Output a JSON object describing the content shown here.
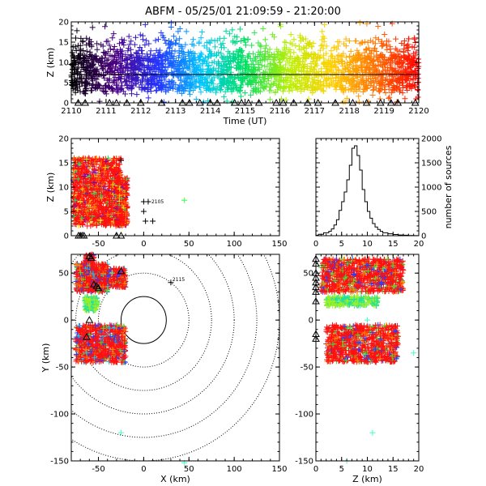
{
  "title": "ABFM - 05/25/01 21:09:59 - 21:20:00",
  "colors": {
    "background": "#ffffff",
    "axes": "#000000",
    "time_scale": [
      "#000000",
      "#4b0082",
      "#2233ff",
      "#00c8ff",
      "#00e060",
      "#b8f000",
      "#ffd000",
      "#ff7000",
      "#ff0000"
    ]
  },
  "chart_data": [
    {
      "id": "time_height",
      "type": "scatter",
      "xlabel": "Time (UT)",
      "ylabel": "Z (km)",
      "xlim": [
        2110,
        2120
      ],
      "ylim": [
        0,
        20
      ],
      "xticks": [
        "2110",
        "2111",
        "2112",
        "2113",
        "2114",
        "2115",
        "2116",
        "2117",
        "2118",
        "2119",
        "2120"
      ],
      "yticks": [
        "0",
        "5",
        "10",
        "15",
        "20"
      ],
      "marker": "+",
      "color_by": "time",
      "reference_line_z": 7,
      "station_marker": "triangle",
      "station_times": [
        2110.2,
        2110.4,
        2111.1,
        2111.3,
        2111.6,
        2112.0,
        2112.6,
        2113.2,
        2113.4,
        2113.7,
        2114.0,
        2114.2,
        2114.7,
        2114.9,
        2115.1,
        2115.4,
        2115.9,
        2116.1,
        2116.4,
        2116.8,
        2117.1,
        2117.6,
        2118.1,
        2118.5,
        2118.9,
        2119.2,
        2119.4,
        2119.9
      ],
      "density": {
        "note": "sources spread across full time range, concentrated at 3-12 km",
        "z_range_core": [
          3,
          12
        ],
        "z_range_outliers": [
          0,
          20
        ]
      }
    },
    {
      "id": "x_height",
      "type": "scatter",
      "xlabel": "",
      "ylabel": "Z (km)",
      "xlim": [
        -80,
        150
      ],
      "ylim": [
        0,
        20
      ],
      "xticks": [
        "-50",
        "0",
        "50",
        "100",
        "150"
      ],
      "yticks": [
        "0",
        "5",
        "10",
        "15",
        "20"
      ],
      "clusters": [
        {
          "x_range": [
            -78,
            -25
          ],
          "z_range": [
            2,
            16
          ]
        },
        {
          "x_range": [
            -30,
            -18
          ],
          "z_range": [
            2,
            12
          ]
        }
      ],
      "labeled_point": {
        "x": 5,
        "z": 7,
        "label": "2105"
      },
      "outliers": [
        {
          "x": 45,
          "z": 7.3
        },
        {
          "x": 0,
          "z": 5
        },
        {
          "x": 2,
          "z": 3
        },
        {
          "x": 10,
          "z": 3
        },
        {
          "x": -25,
          "z": 15.5
        },
        {
          "x": 0,
          "z": 7
        }
      ]
    },
    {
      "id": "height_histogram",
      "type": "line",
      "xlabel": "",
      "ylabel": "number of sources",
      "ylabel_side": "right",
      "xlim": [
        0,
        20
      ],
      "ylim": [
        0,
        2000
      ],
      "xticks": [
        "0",
        "5",
        "10",
        "15",
        "20"
      ],
      "yticks": [
        "0",
        "500",
        "1000",
        "1500",
        "2000"
      ],
      "x": [
        0.5,
        1.5,
        2.5,
        3.0,
        3.5,
        4.0,
        4.5,
        5.0,
        5.5,
        6.0,
        6.5,
        7.0,
        7.5,
        8.0,
        8.5,
        9.0,
        9.5,
        10.0,
        10.5,
        11.0,
        11.5,
        12.0,
        12.5,
        13.0,
        14.0,
        15.0,
        16.0,
        17.0,
        18.0,
        19.0,
        20.0
      ],
      "values": [
        10,
        30,
        60,
        90,
        140,
        220,
        330,
        520,
        700,
        900,
        1150,
        1450,
        1800,
        1850,
        1650,
        1350,
        950,
        700,
        500,
        360,
        250,
        180,
        130,
        90,
        60,
        40,
        25,
        15,
        10,
        5,
        3
      ]
    },
    {
      "id": "plan_view",
      "type": "scatter",
      "xlabel": "X (km)",
      "ylabel": "Y (km)",
      "xlim": [
        -80,
        150
      ],
      "ylim": [
        -150,
        70
      ],
      "xticks": [
        "-50",
        "0",
        "50",
        "100",
        "150"
      ],
      "yticks": [
        "-150",
        "-100",
        "-50",
        "0",
        "50"
      ],
      "range_rings_km": [
        25,
        50,
        75,
        100,
        125,
        150
      ],
      "clusters": [
        {
          "x_range": [
            -75,
            -40
          ],
          "y_range": [
            30,
            60
          ]
        },
        {
          "x_range": [
            -45,
            -20
          ],
          "y_range": [
            35,
            55
          ]
        },
        {
          "x_range": [
            -75,
            -20
          ],
          "y_range": [
            -45,
            -5
          ]
        },
        {
          "x_range": [
            -65,
            -50
          ],
          "y_range": [
            10,
            25
          ]
        },
        {
          "x_range": [
            -65,
            -55
          ],
          "y_range": [
            60,
            70
          ]
        }
      ],
      "labeled_point": {
        "x": 30,
        "y": 40,
        "label": "2115"
      },
      "outliers": [
        {
          "x": -25,
          "y": -120
        },
        {
          "x": 45,
          "y": -152
        },
        {
          "x": -35,
          "y": 50
        }
      ]
    },
    {
      "id": "height_y",
      "type": "scatter",
      "xlabel": "Z (km)",
      "ylabel": "",
      "xlim": [
        0,
        20
      ],
      "ylim": [
        -150,
        70
      ],
      "xticks": [
        "0",
        "5",
        "10",
        "15",
        "20"
      ],
      "yticks": [
        "-150",
        "-100",
        "-50",
        "0",
        "50"
      ],
      "clusters": [
        {
          "z_range": [
            1,
            17
          ],
          "y_range": [
            30,
            65
          ]
        },
        {
          "z_range": [
            2,
            12
          ],
          "y_range": [
            15,
            25
          ]
        },
        {
          "z_range": [
            2,
            16
          ],
          "y_range": [
            -45,
            -5
          ]
        }
      ],
      "outliers": [
        {
          "z": 19,
          "y": -35
        },
        {
          "z": 10,
          "y": 0
        },
        {
          "z": 6,
          "y": -150
        },
        {
          "z": 11,
          "y": -120
        }
      ]
    }
  ]
}
